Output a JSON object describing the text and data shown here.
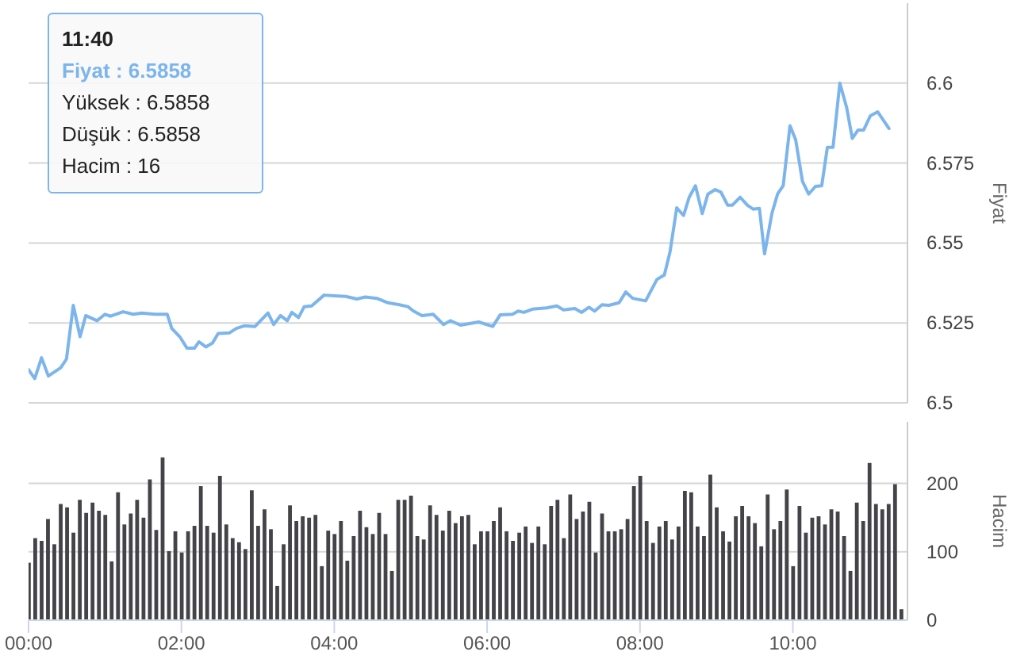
{
  "chart_data": [
    {
      "type": "line",
      "ylabel": "Fiyat",
      "color": "#7cb5ec",
      "marker": "none",
      "line_style": "solid",
      "grid": "y",
      "tick_labels": "y",
      "xlim": [
        0,
        11.5
      ],
      "ylim": [
        6.5,
        6.625
      ],
      "yticks": [
        6.5,
        6.525,
        6.55,
        6.575,
        6.6
      ],
      "x": [
        0,
        0.081,
        0.17,
        0.259,
        0.422,
        0.496,
        0.585,
        0.674,
        0.748,
        0.896,
        1.0,
        1.074,
        1.237,
        1.37,
        1.481,
        1.652,
        1.815,
        1.874,
        1.978,
        2.074,
        2.17,
        2.23,
        2.319,
        2.407,
        2.481,
        2.63,
        2.719,
        2.822,
        2.963,
        3.133,
        3.207,
        3.296,
        3.385,
        3.444,
        3.533,
        3.607,
        3.704,
        3.867,
        4.0,
        4.148,
        4.296,
        4.407,
        4.556,
        4.704,
        4.852,
        4.963,
        5.037,
        5.148,
        5.296,
        5.43,
        5.519,
        5.652,
        5.889,
        6.074,
        6.17,
        6.333,
        6.407,
        6.481,
        6.593,
        6.778,
        6.911,
        7.0,
        7.148,
        7.237,
        7.333,
        7.407,
        7.504,
        7.593,
        7.726,
        7.815,
        7.904,
        8.074,
        8.222,
        8.319,
        8.393,
        8.481,
        8.57,
        8.644,
        8.726,
        8.815,
        8.889,
        8.985,
        9.059,
        9.148,
        9.207,
        9.311,
        9.407,
        9.481,
        9.563,
        9.63,
        9.726,
        9.8,
        9.874,
        9.963,
        10.037,
        10.126,
        10.207,
        10.296,
        10.378,
        10.452,
        10.526,
        10.615,
        10.704,
        10.778,
        10.852,
        10.926,
        11.015,
        11.111,
        11.259
      ],
      "values": [
        6.5104,
        6.5076,
        6.5141,
        6.5084,
        6.511,
        6.5137,
        6.5305,
        6.5207,
        6.5273,
        6.5257,
        6.5277,
        6.5271,
        6.5285,
        6.5277,
        6.5281,
        6.5277,
        6.5277,
        6.5233,
        6.5207,
        6.5171,
        6.5171,
        6.5191,
        6.5175,
        6.5187,
        6.5217,
        6.5219,
        6.5233,
        6.5241,
        6.5239,
        6.5281,
        6.5245,
        6.5273,
        6.5257,
        6.5283,
        6.5267,
        6.5301,
        6.5303,
        6.5337,
        6.5335,
        6.5333,
        6.5325,
        6.5331,
        6.5327,
        6.5313,
        6.5307,
        6.5301,
        6.5287,
        6.5273,
        6.5277,
        6.5245,
        6.5257,
        6.5243,
        6.5253,
        6.5239,
        6.5275,
        6.5277,
        6.5287,
        6.5283,
        6.5293,
        6.5297,
        6.5303,
        6.5291,
        6.5295,
        6.5283,
        6.5299,
        6.5287,
        6.5307,
        6.5305,
        6.5313,
        6.5347,
        6.5327,
        6.5319,
        6.5386,
        6.54,
        6.5472,
        6.561,
        6.5586,
        6.5643,
        6.5679,
        6.5592,
        6.5653,
        6.5667,
        6.5659,
        6.5618,
        6.5618,
        6.5643,
        6.5618,
        6.5606,
        6.5608,
        6.5466,
        6.5592,
        6.5653,
        6.5679,
        6.5867,
        6.5823,
        6.5693,
        6.5653,
        6.5677,
        6.5679,
        6.5799,
        6.5799,
        6.6,
        6.5924,
        6.5827,
        6.5853,
        6.5853,
        6.5898,
        6.591,
        6.5858
      ],
      "annotations": [
        "11:40",
        "Fiyat : 6.5858",
        "Yüksek : 6.5858",
        "Düşük : 6.5858",
        "Hacim : 16"
      ]
    },
    {
      "type": "bar",
      "ylabel": "Hacim",
      "color": "#434348",
      "grid": "y",
      "xlim": [
        0,
        11.5
      ],
      "xticks": [
        {
          "value": 0,
          "label": "00:00"
        },
        {
          "value": 2,
          "label": "02:00"
        },
        {
          "value": 4,
          "label": "04:00"
        },
        {
          "value": 6,
          "label": "06:00"
        },
        {
          "value": 8,
          "label": "08:00"
        },
        {
          "value": 10,
          "label": "10:00"
        }
      ],
      "ylim": [
        0,
        290
      ],
      "yticks": [
        0,
        100,
        200
      ],
      "x": [
        0,
        0.0833,
        0.1667,
        0.25,
        0.3333,
        0.4167,
        0.5,
        0.5833,
        0.6667,
        0.75,
        0.8333,
        0.9167,
        1,
        1.0833,
        1.1667,
        1.25,
        1.3333,
        1.4167,
        1.5,
        1.5833,
        1.6667,
        1.75,
        1.8333,
        1.9167,
        2,
        2.0833,
        2.1667,
        2.25,
        2.3333,
        2.4167,
        2.5,
        2.5833,
        2.6667,
        2.75,
        2.8333,
        2.9167,
        3,
        3.0833,
        3.1667,
        3.25,
        3.3333,
        3.4167,
        3.5,
        3.5833,
        3.6667,
        3.75,
        3.8333,
        3.9167,
        4,
        4.0833,
        4.1667,
        4.25,
        4.3333,
        4.4167,
        4.5,
        4.5833,
        4.6667,
        4.75,
        4.8333,
        4.9167,
        5,
        5.0833,
        5.1667,
        5.25,
        5.3333,
        5.4167,
        5.5,
        5.5833,
        5.6667,
        5.75,
        5.8333,
        5.9167,
        6,
        6.0833,
        6.1667,
        6.25,
        6.3333,
        6.4167,
        6.5,
        6.5833,
        6.6667,
        6.75,
        6.8333,
        6.9167,
        7,
        7.0833,
        7.1667,
        7.25,
        7.3333,
        7.4167,
        7.5,
        7.5833,
        7.6667,
        7.75,
        7.8333,
        7.9167,
        8,
        8.0833,
        8.1667,
        8.25,
        8.3333,
        8.4167,
        8.5,
        8.5833,
        8.6667,
        8.75,
        8.8333,
        8.9167,
        9,
        9.0833,
        9.1667,
        9.25,
        9.3333,
        9.4167,
        9.5,
        9.5833,
        9.6667,
        9.75,
        9.8333,
        9.9167,
        10,
        10.0833,
        10.1667,
        10.25,
        10.3333,
        10.4167,
        10.5,
        10.5833,
        10.6667,
        10.75,
        10.8333,
        10.9167,
        11,
        11.0833,
        11.1667,
        11.25,
        11.3333,
        11.4167
      ],
      "values": [
        84,
        120,
        116,
        148,
        111,
        170,
        165,
        128,
        176,
        157,
        172,
        160,
        154,
        86,
        187,
        140,
        156,
        176,
        150,
        206,
        132,
        238,
        101,
        130,
        99,
        130,
        138,
        196,
        138,
        128,
        211,
        140,
        120,
        114,
        104,
        190,
        138,
        162,
        133,
        50,
        111,
        168,
        145,
        152,
        150,
        154,
        79,
        131,
        126,
        145,
        87,
        123,
        160,
        136,
        126,
        157,
        126,
        72,
        176,
        176,
        182,
        123,
        118,
        168,
        154,
        131,
        160,
        142,
        152,
        154,
        111,
        130,
        130,
        145,
        165,
        130,
        116,
        128,
        137,
        113,
        137,
        111,
        167,
        176,
        120,
        184,
        148,
        159,
        173,
        99,
        156,
        130,
        130,
        133,
        148,
        196,
        211,
        145,
        113,
        137,
        145,
        118,
        137,
        189,
        187,
        137,
        123,
        213,
        165,
        130,
        115,
        152,
        167,
        152,
        142,
        108,
        184,
        133,
        145,
        191,
        79,
        167,
        128,
        150,
        152,
        140,
        162,
        159,
        123,
        72,
        172,
        145,
        230,
        170,
        162,
        170,
        199,
        16
      ]
    }
  ]
}
